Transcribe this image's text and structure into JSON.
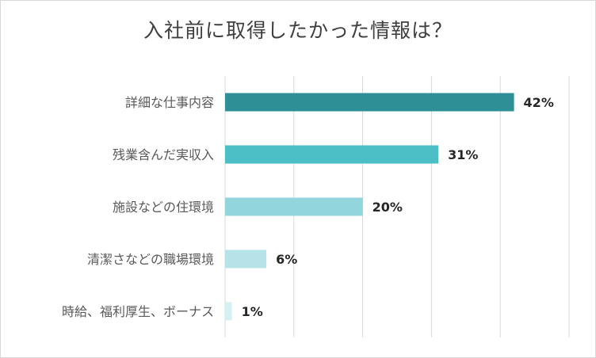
{
  "chart_data": {
    "type": "bar",
    "orientation": "horizontal",
    "title": "入社前に取得したかった情報は？",
    "categories": [
      "詳細な仕事内容",
      "残業含んだ実収入",
      "施設などの住環境",
      "清潔さなどの職場環境",
      "時給、福利厚生、ボーナス"
    ],
    "values": [
      42,
      31,
      20,
      6,
      1
    ],
    "value_labels": [
      "42%",
      "31%",
      "20%",
      "6%",
      "1%"
    ],
    "xlim": [
      0,
      50
    ],
    "grid": true,
    "legend": "none",
    "colors": [
      "#2e8f96",
      "#4bbec6",
      "#93d5dc",
      "#b5e3e7",
      "#d6f0f2"
    ],
    "grid_color": "#d9d9d9"
  }
}
